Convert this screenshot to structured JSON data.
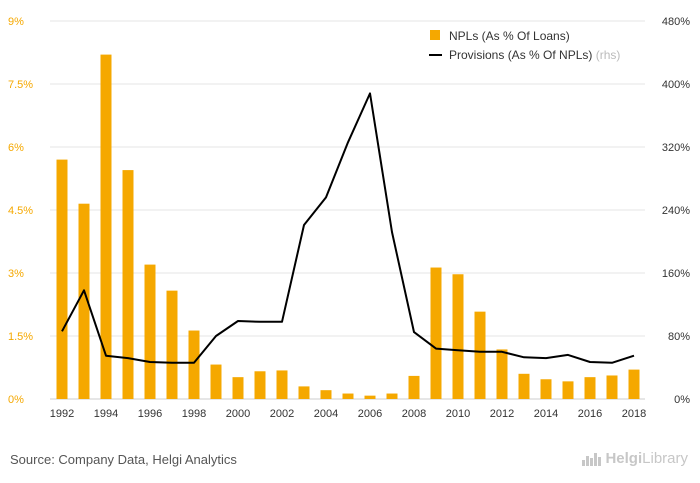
{
  "chart_data": {
    "type": "bar",
    "x": [
      1992,
      1993,
      1994,
      1995,
      1996,
      1997,
      1998,
      1999,
      2000,
      2001,
      2002,
      2003,
      2004,
      2005,
      2006,
      2007,
      2008,
      2009,
      2010,
      2011,
      2012,
      2013,
      2014,
      2015,
      2016,
      2017,
      2018
    ],
    "x_tick_labels": [
      "1992",
      "1994",
      "1996",
      "1998",
      "2000",
      "2002",
      "2004",
      "2006",
      "2008",
      "2010",
      "2012",
      "2014",
      "2016",
      "2018"
    ],
    "series": [
      {
        "name": "NPLs (As % Of Loans)",
        "type": "bar",
        "axis": "left",
        "color": "#f5a800",
        "values": [
          5.7,
          4.65,
          8.2,
          5.45,
          3.2,
          2.58,
          1.63,
          0.82,
          0.52,
          0.66,
          0.68,
          0.3,
          0.21,
          0.13,
          0.08,
          0.13,
          0.55,
          3.13,
          2.97,
          2.08,
          1.18,
          0.6,
          0.47,
          0.42,
          0.52,
          0.56,
          0.7
        ]
      },
      {
        "name": "Provisions (As % Of NPLs)",
        "name_suffix": " (rhs)",
        "type": "line",
        "axis": "right",
        "color": "#000000",
        "values": [
          86,
          138,
          55,
          52,
          47,
          46,
          46,
          80,
          99,
          98,
          98,
          221,
          256,
          326,
          388,
          212,
          85,
          64,
          62,
          60,
          60,
          53,
          52,
          56,
          47,
          46,
          55
        ]
      }
    ],
    "y_left": {
      "lim": [
        0,
        9
      ],
      "ticks": [
        0,
        1.5,
        3,
        4.5,
        6,
        7.5,
        9
      ],
      "tick_labels": [
        "0%",
        "1.5%",
        "3%",
        "4.5%",
        "6%",
        "7.5%",
        "9%"
      ],
      "color": "#f5a800"
    },
    "y_right": {
      "lim": [
        0,
        480
      ],
      "ticks": [
        0,
        80,
        160,
        240,
        320,
        400,
        480
      ],
      "tick_labels": [
        "0%",
        "80%",
        "160%",
        "240%",
        "320%",
        "400%",
        "480%"
      ]
    },
    "grid": true,
    "legend_position": "top-right"
  },
  "footer": {
    "source": "Source: Company Data, Helgi Analytics",
    "logo_part1": "Helgi",
    "logo_part2": "Library"
  }
}
